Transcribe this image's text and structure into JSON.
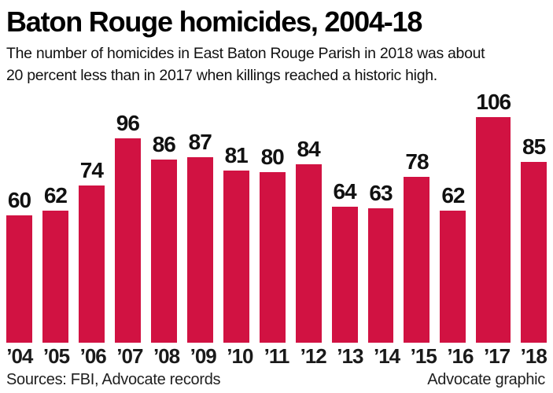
{
  "header": {
    "title": "Baton Rouge homicides, 2004-18",
    "subtitle_line1": "The number of homicides in East Baton Rouge Parish in 2018 was about",
    "subtitle_line2": "20 percent less than in 2017 when killings reached a historic high."
  },
  "chart_data": {
    "type": "bar",
    "title": "Baton Rouge homicides, 2004-18",
    "categories": [
      "’04",
      "’05",
      "’06",
      "’07",
      "’08",
      "’09",
      "’10",
      "’11",
      "’12",
      "’13",
      "’14",
      "’15",
      "’16",
      "’17",
      "’18"
    ],
    "values": [
      60,
      62,
      74,
      96,
      86,
      87,
      81,
      80,
      84,
      64,
      63,
      78,
      62,
      106,
      85
    ],
    "xlabel": "",
    "ylabel": "",
    "ylim": [
      0,
      106
    ],
    "grid": false,
    "legend": "none",
    "bar_color": "#d11242",
    "value_label_color": "#111111"
  },
  "footer": {
    "sources": "Sources: FBI, Advocate records",
    "credit": "Advocate graphic"
  }
}
